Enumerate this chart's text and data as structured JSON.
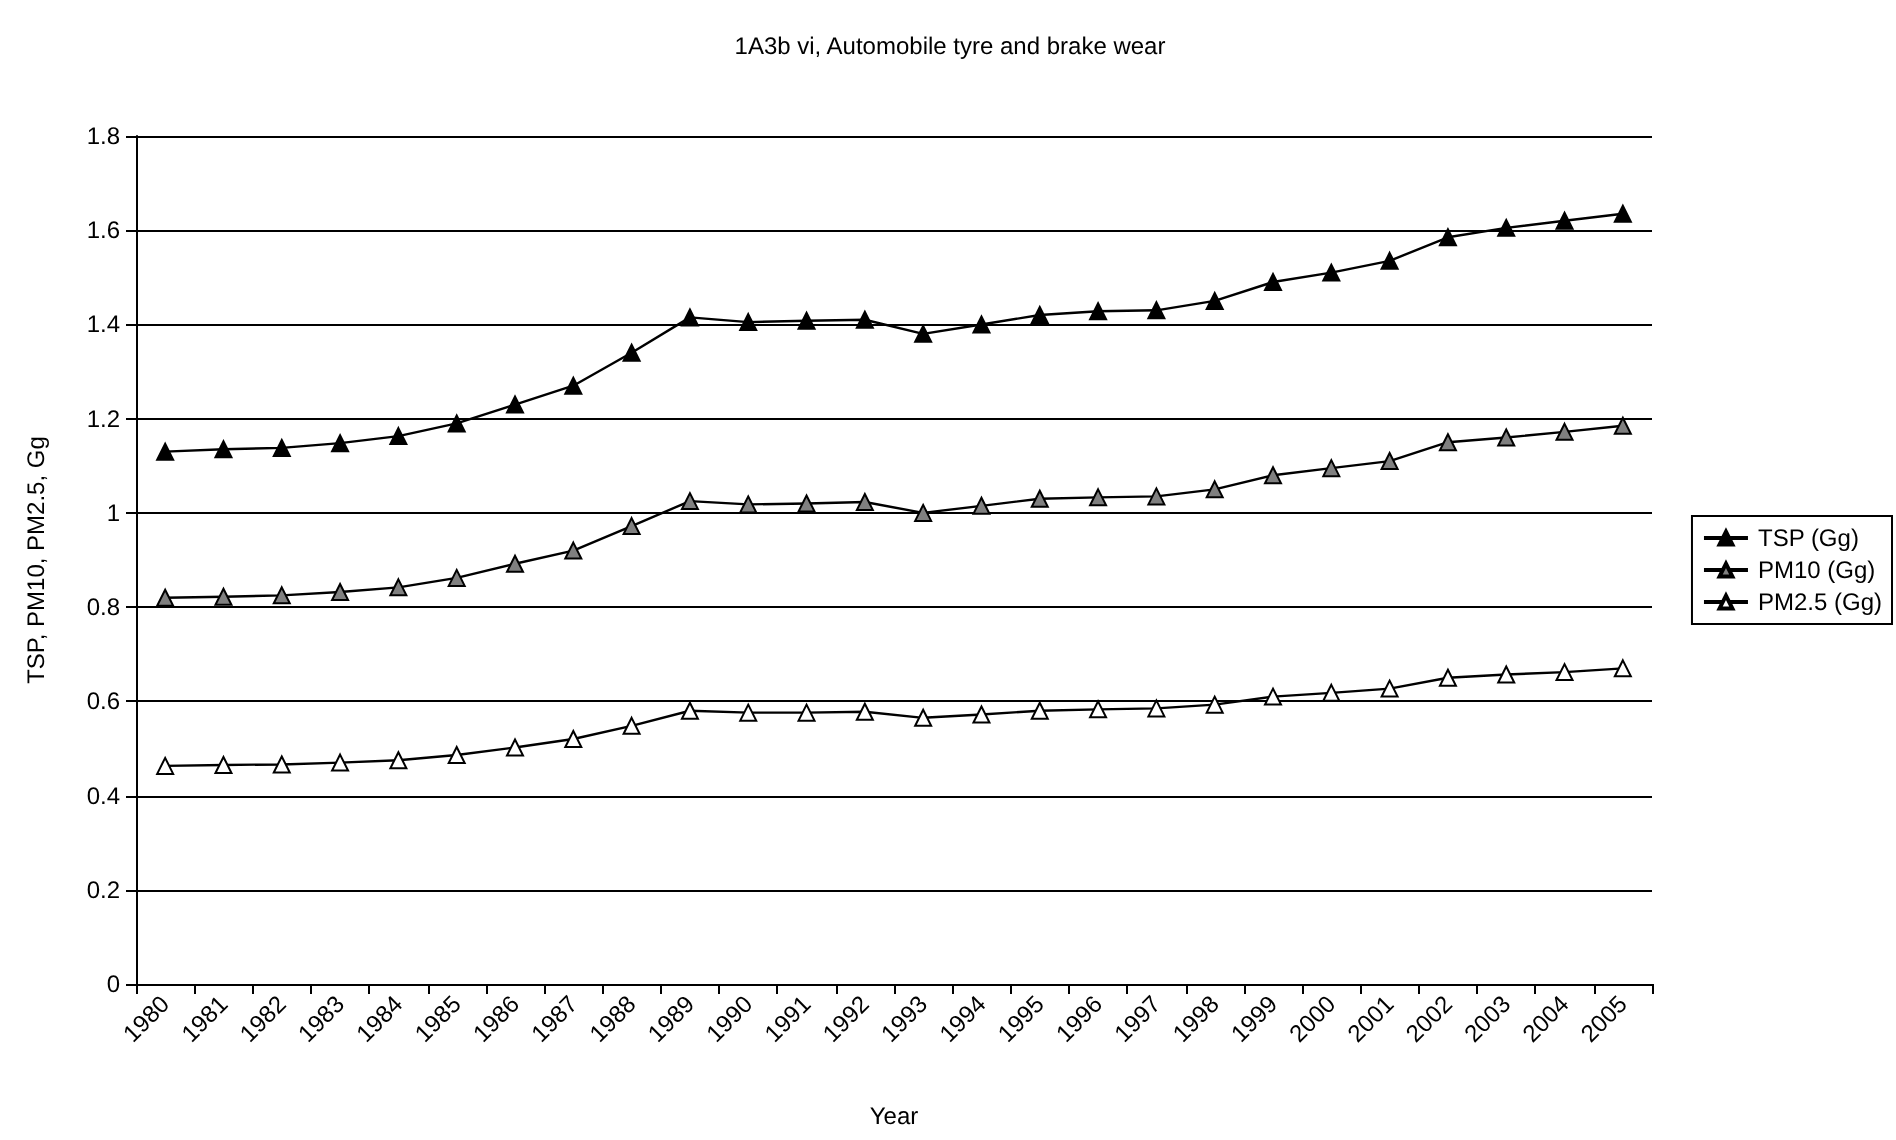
{
  "chart_data": {
    "type": "line",
    "title": "1A3b vi, Automobile tyre and brake wear",
    "xlabel": "Year",
    "ylabel": "TSP, PM10, PM2.5, Gg",
    "categories": [
      "1980",
      "1981",
      "1982",
      "1983",
      "1984",
      "1985",
      "1986",
      "1987",
      "1988",
      "1989",
      "1990",
      "1991",
      "1992",
      "1993",
      "1994",
      "1995",
      "1996",
      "1997",
      "1998",
      "1999",
      "2000",
      "2001",
      "2002",
      "2003",
      "2004",
      "2005"
    ],
    "series": [
      {
        "name": "TSP (Gg)",
        "color": "#000000",
        "values": [
          1.13,
          1.135,
          1.138,
          1.148,
          1.163,
          1.19,
          1.23,
          1.27,
          1.34,
          1.415,
          1.405,
          1.408,
          1.41,
          1.38,
          1.4,
          1.42,
          1.428,
          1.43,
          1.45,
          1.49,
          1.51,
          1.535,
          1.585,
          1.605,
          1.62,
          1.635
        ]
      },
      {
        "name": "PM10 (Gg)",
        "color": "#808080",
        "values": [
          0.82,
          0.822,
          0.825,
          0.832,
          0.842,
          0.862,
          0.892,
          0.92,
          0.972,
          1.025,
          1.018,
          1.02,
          1.023,
          1.0,
          1.015,
          1.03,
          1.033,
          1.035,
          1.05,
          1.08,
          1.095,
          1.11,
          1.15,
          1.16,
          1.172,
          1.185
        ]
      },
      {
        "name": "PM2.5 (Gg)",
        "color": "#ffffff",
        "values": [
          0.463,
          0.465,
          0.466,
          0.47,
          0.475,
          0.486,
          0.502,
          0.52,
          0.548,
          0.58,
          0.576,
          0.576,
          0.578,
          0.565,
          0.572,
          0.58,
          0.583,
          0.585,
          0.593,
          0.61,
          0.618,
          0.627,
          0.65,
          0.657,
          0.662,
          0.67
        ]
      }
    ],
    "ylim": [
      0,
      1.8
    ],
    "yticks": [
      0,
      0.2,
      0.4,
      0.6,
      0.8,
      1,
      1.2,
      1.4,
      1.6,
      1.8
    ],
    "grid": "y",
    "legend": "right",
    "marker": "triangle",
    "line_style": "solid"
  }
}
